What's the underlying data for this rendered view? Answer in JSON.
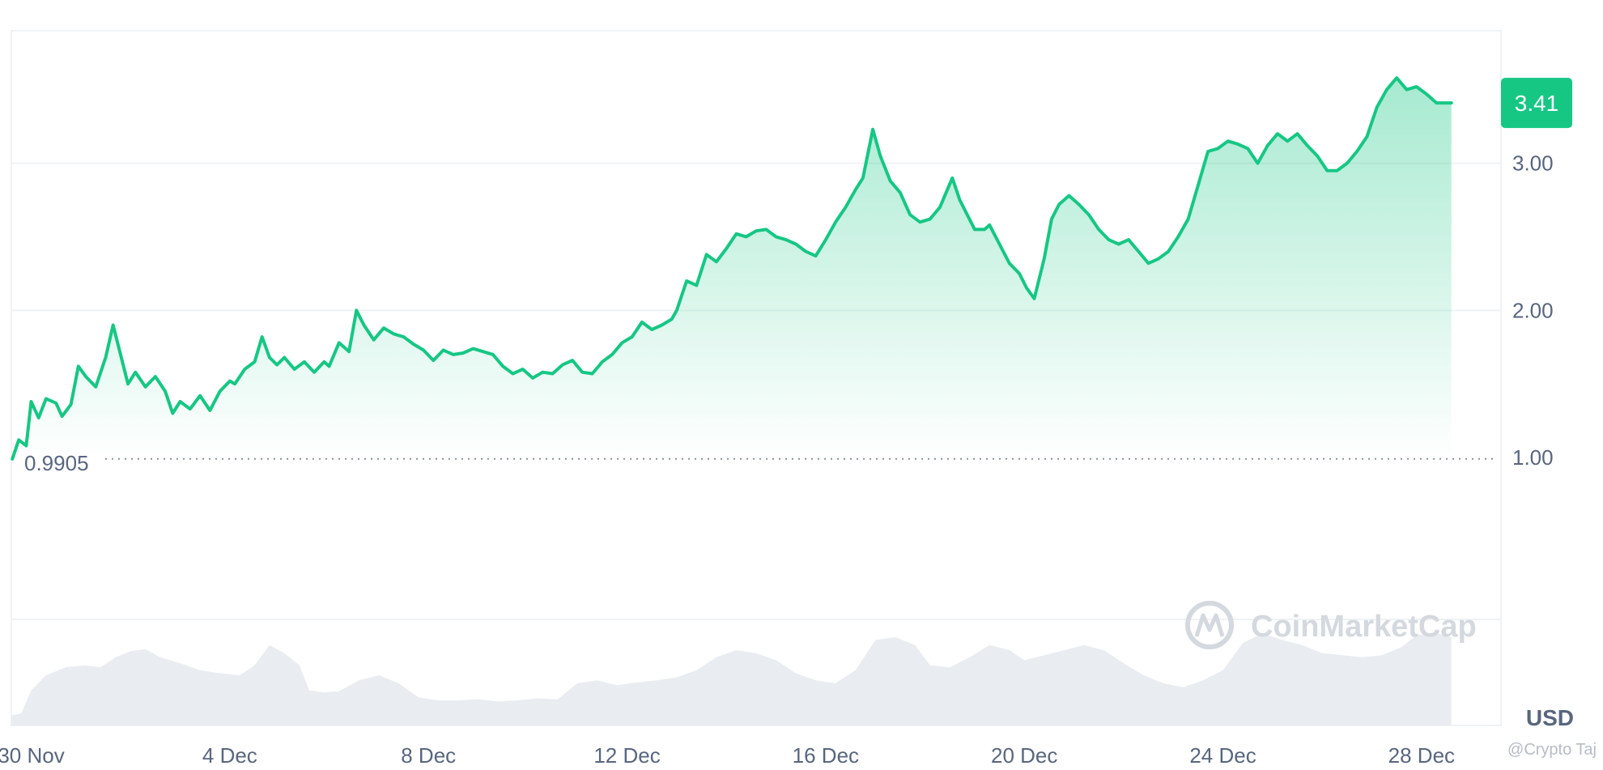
{
  "chart_data": {
    "type": "area",
    "currency": "USD",
    "current_price": "3.41",
    "baseline_value": 0.9905,
    "baseline_label": "0.9905",
    "ylim": [
      -0.1,
      3.9
    ],
    "y_ticks": [
      {
        "value": 1.0,
        "label": "1.00"
      },
      {
        "value": 2.0,
        "label": "2.00"
      },
      {
        "value": 3.0,
        "label": "3.00"
      }
    ],
    "x_ticks": [
      {
        "day": 1,
        "label": "30 Nov"
      },
      {
        "day": 5,
        "label": "4 Dec"
      },
      {
        "day": 9,
        "label": "8 Dec"
      },
      {
        "day": 13,
        "label": "12 Dec"
      },
      {
        "day": 17,
        "label": "16 Dec"
      },
      {
        "day": 21,
        "label": "20 Dec"
      },
      {
        "day": 25,
        "label": "24 Dec"
      },
      {
        "day": 29,
        "label": "28 Dec"
      }
    ],
    "xlim": [
      0.6,
      30.6
    ],
    "price_series": {
      "name": "Price",
      "color": "#16c784",
      "points": [
        [
          0.62,
          0.99
        ],
        [
          0.75,
          1.12
        ],
        [
          0.9,
          1.08
        ],
        [
          1.0,
          1.38
        ],
        [
          1.15,
          1.27
        ],
        [
          1.3,
          1.4
        ],
        [
          1.5,
          1.37
        ],
        [
          1.62,
          1.28
        ],
        [
          1.8,
          1.36
        ],
        [
          1.95,
          1.62
        ],
        [
          2.1,
          1.55
        ],
        [
          2.3,
          1.48
        ],
        [
          2.5,
          1.68
        ],
        [
          2.65,
          1.9
        ],
        [
          2.8,
          1.7
        ],
        [
          2.95,
          1.5
        ],
        [
          3.1,
          1.58
        ],
        [
          3.3,
          1.48
        ],
        [
          3.5,
          1.55
        ],
        [
          3.7,
          1.45
        ],
        [
          3.85,
          1.3
        ],
        [
          4.0,
          1.38
        ],
        [
          4.2,
          1.33
        ],
        [
          4.4,
          1.42
        ],
        [
          4.6,
          1.32
        ],
        [
          4.8,
          1.45
        ],
        [
          5.0,
          1.52
        ],
        [
          5.1,
          1.5
        ],
        [
          5.3,
          1.6
        ],
        [
          5.5,
          1.65
        ],
        [
          5.65,
          1.82
        ],
        [
          5.8,
          1.68
        ],
        [
          5.95,
          1.63
        ],
        [
          6.1,
          1.68
        ],
        [
          6.3,
          1.6
        ],
        [
          6.5,
          1.65
        ],
        [
          6.7,
          1.58
        ],
        [
          6.9,
          1.65
        ],
        [
          7.0,
          1.62
        ],
        [
          7.2,
          1.78
        ],
        [
          7.4,
          1.72
        ],
        [
          7.55,
          2.0
        ],
        [
          7.7,
          1.9
        ],
        [
          7.9,
          1.8
        ],
        [
          8.1,
          1.88
        ],
        [
          8.3,
          1.84
        ],
        [
          8.5,
          1.82
        ],
        [
          8.7,
          1.77
        ],
        [
          8.9,
          1.73
        ],
        [
          9.1,
          1.66
        ],
        [
          9.3,
          1.73
        ],
        [
          9.5,
          1.7
        ],
        [
          9.7,
          1.71
        ],
        [
          9.9,
          1.74
        ],
        [
          10.1,
          1.72
        ],
        [
          10.3,
          1.7
        ],
        [
          10.5,
          1.62
        ],
        [
          10.7,
          1.57
        ],
        [
          10.9,
          1.6
        ],
        [
          11.1,
          1.54
        ],
        [
          11.3,
          1.58
        ],
        [
          11.5,
          1.57
        ],
        [
          11.7,
          1.63
        ],
        [
          11.9,
          1.66
        ],
        [
          12.1,
          1.58
        ],
        [
          12.3,
          1.57
        ],
        [
          12.5,
          1.65
        ],
        [
          12.7,
          1.7
        ],
        [
          12.9,
          1.78
        ],
        [
          13.1,
          1.82
        ],
        [
          13.3,
          1.92
        ],
        [
          13.5,
          1.87
        ],
        [
          13.7,
          1.9
        ],
        [
          13.9,
          1.94
        ],
        [
          14.0,
          2.0
        ],
        [
          14.2,
          2.2
        ],
        [
          14.4,
          2.17
        ],
        [
          14.6,
          2.38
        ],
        [
          14.8,
          2.33
        ],
        [
          15.0,
          2.42
        ],
        [
          15.2,
          2.52
        ],
        [
          15.4,
          2.5
        ],
        [
          15.6,
          2.54
        ],
        [
          15.8,
          2.55
        ],
        [
          16.0,
          2.5
        ],
        [
          16.2,
          2.48
        ],
        [
          16.4,
          2.45
        ],
        [
          16.6,
          2.4
        ],
        [
          16.8,
          2.37
        ],
        [
          17.0,
          2.48
        ],
        [
          17.2,
          2.6
        ],
        [
          17.4,
          2.7
        ],
        [
          17.6,
          2.82
        ],
        [
          17.75,
          2.9
        ],
        [
          17.95,
          3.23
        ],
        [
          18.1,
          3.05
        ],
        [
          18.3,
          2.88
        ],
        [
          18.5,
          2.8
        ],
        [
          18.7,
          2.65
        ],
        [
          18.9,
          2.6
        ],
        [
          19.1,
          2.62
        ],
        [
          19.3,
          2.7
        ],
        [
          19.55,
          2.9
        ],
        [
          19.7,
          2.75
        ],
        [
          19.85,
          2.65
        ],
        [
          20.0,
          2.55
        ],
        [
          20.2,
          2.55
        ],
        [
          20.3,
          2.58
        ],
        [
          20.5,
          2.45
        ],
        [
          20.7,
          2.32
        ],
        [
          20.9,
          2.25
        ],
        [
          21.05,
          2.15
        ],
        [
          21.2,
          2.08
        ],
        [
          21.4,
          2.35
        ],
        [
          21.55,
          2.62
        ],
        [
          21.7,
          2.72
        ],
        [
          21.9,
          2.78
        ],
        [
          22.1,
          2.72
        ],
        [
          22.3,
          2.65
        ],
        [
          22.5,
          2.55
        ],
        [
          22.7,
          2.48
        ],
        [
          22.9,
          2.45
        ],
        [
          23.1,
          2.48
        ],
        [
          23.3,
          2.4
        ],
        [
          23.5,
          2.32
        ],
        [
          23.7,
          2.35
        ],
        [
          23.9,
          2.4
        ],
        [
          24.1,
          2.5
        ],
        [
          24.3,
          2.62
        ],
        [
          24.5,
          2.85
        ],
        [
          24.7,
          3.08
        ],
        [
          24.9,
          3.1
        ],
        [
          25.1,
          3.15
        ],
        [
          25.3,
          3.13
        ],
        [
          25.5,
          3.1
        ],
        [
          25.7,
          3.0
        ],
        [
          25.9,
          3.12
        ],
        [
          26.1,
          3.2
        ],
        [
          26.3,
          3.15
        ],
        [
          26.5,
          3.2
        ],
        [
          26.7,
          3.12
        ],
        [
          26.9,
          3.05
        ],
        [
          27.1,
          2.95
        ],
        [
          27.3,
          2.95
        ],
        [
          27.5,
          3.0
        ],
        [
          27.7,
          3.08
        ],
        [
          27.9,
          3.18
        ],
        [
          28.1,
          3.38
        ],
        [
          28.3,
          3.5
        ],
        [
          28.5,
          3.58
        ],
        [
          28.7,
          3.5
        ],
        [
          28.9,
          3.52
        ],
        [
          29.1,
          3.47
        ],
        [
          29.3,
          3.41
        ],
        [
          29.6,
          3.41
        ]
      ]
    },
    "volume_series": {
      "name": "Volume",
      "color": "#e9ecf0",
      "points": [
        [
          0.6,
          0.1
        ],
        [
          0.8,
          0.12
        ],
        [
          1.0,
          0.35
        ],
        [
          1.3,
          0.5
        ],
        [
          1.7,
          0.58
        ],
        [
          2.1,
          0.6
        ],
        [
          2.4,
          0.58
        ],
        [
          2.7,
          0.68
        ],
        [
          3.0,
          0.74
        ],
        [
          3.3,
          0.76
        ],
        [
          3.6,
          0.68
        ],
        [
          4.0,
          0.62
        ],
        [
          4.4,
          0.55
        ],
        [
          4.8,
          0.52
        ],
        [
          5.2,
          0.5
        ],
        [
          5.5,
          0.6
        ],
        [
          5.8,
          0.8
        ],
        [
          6.1,
          0.72
        ],
        [
          6.4,
          0.6
        ],
        [
          6.6,
          0.35
        ],
        [
          6.9,
          0.33
        ],
        [
          7.2,
          0.34
        ],
        [
          7.6,
          0.45
        ],
        [
          8.0,
          0.5
        ],
        [
          8.4,
          0.42
        ],
        [
          8.8,
          0.28
        ],
        [
          9.2,
          0.25
        ],
        [
          9.6,
          0.25
        ],
        [
          10.0,
          0.26
        ],
        [
          10.4,
          0.24
        ],
        [
          10.8,
          0.25
        ],
        [
          11.2,
          0.27
        ],
        [
          11.6,
          0.26
        ],
        [
          12.0,
          0.42
        ],
        [
          12.4,
          0.45
        ],
        [
          12.8,
          0.4
        ],
        [
          13.2,
          0.43
        ],
        [
          13.6,
          0.45
        ],
        [
          14.0,
          0.48
        ],
        [
          14.4,
          0.55
        ],
        [
          14.8,
          0.68
        ],
        [
          15.2,
          0.75
        ],
        [
          15.6,
          0.72
        ],
        [
          16.0,
          0.65
        ],
        [
          16.4,
          0.52
        ],
        [
          16.8,
          0.45
        ],
        [
          17.2,
          0.42
        ],
        [
          17.6,
          0.55
        ],
        [
          18.0,
          0.85
        ],
        [
          18.4,
          0.88
        ],
        [
          18.8,
          0.8
        ],
        [
          19.1,
          0.6
        ],
        [
          19.5,
          0.58
        ],
        [
          19.9,
          0.68
        ],
        [
          20.3,
          0.8
        ],
        [
          20.7,
          0.75
        ],
        [
          21.0,
          0.65
        ],
        [
          21.4,
          0.7
        ],
        [
          21.8,
          0.75
        ],
        [
          22.2,
          0.8
        ],
        [
          22.6,
          0.75
        ],
        [
          23.0,
          0.62
        ],
        [
          23.4,
          0.5
        ],
        [
          23.8,
          0.42
        ],
        [
          24.2,
          0.38
        ],
        [
          24.6,
          0.45
        ],
        [
          25.0,
          0.55
        ],
        [
          25.4,
          0.82
        ],
        [
          25.8,
          0.92
        ],
        [
          26.2,
          0.85
        ],
        [
          26.6,
          0.8
        ],
        [
          27.0,
          0.72
        ],
        [
          27.4,
          0.7
        ],
        [
          27.8,
          0.68
        ],
        [
          28.2,
          0.7
        ],
        [
          28.6,
          0.78
        ],
        [
          28.9,
          0.9
        ],
        [
          29.3,
          0.92
        ],
        [
          29.6,
          0.88
        ]
      ]
    }
  },
  "labels": {
    "unit": "USD",
    "watermark": "CoinMarketCap",
    "credit": "@Crypto Taj"
  },
  "colors": {
    "line": "#16c784",
    "badge": "#16c784",
    "grid": "#eff2f5",
    "axis_text": "#58667e",
    "volume": "#e9ecf0"
  }
}
